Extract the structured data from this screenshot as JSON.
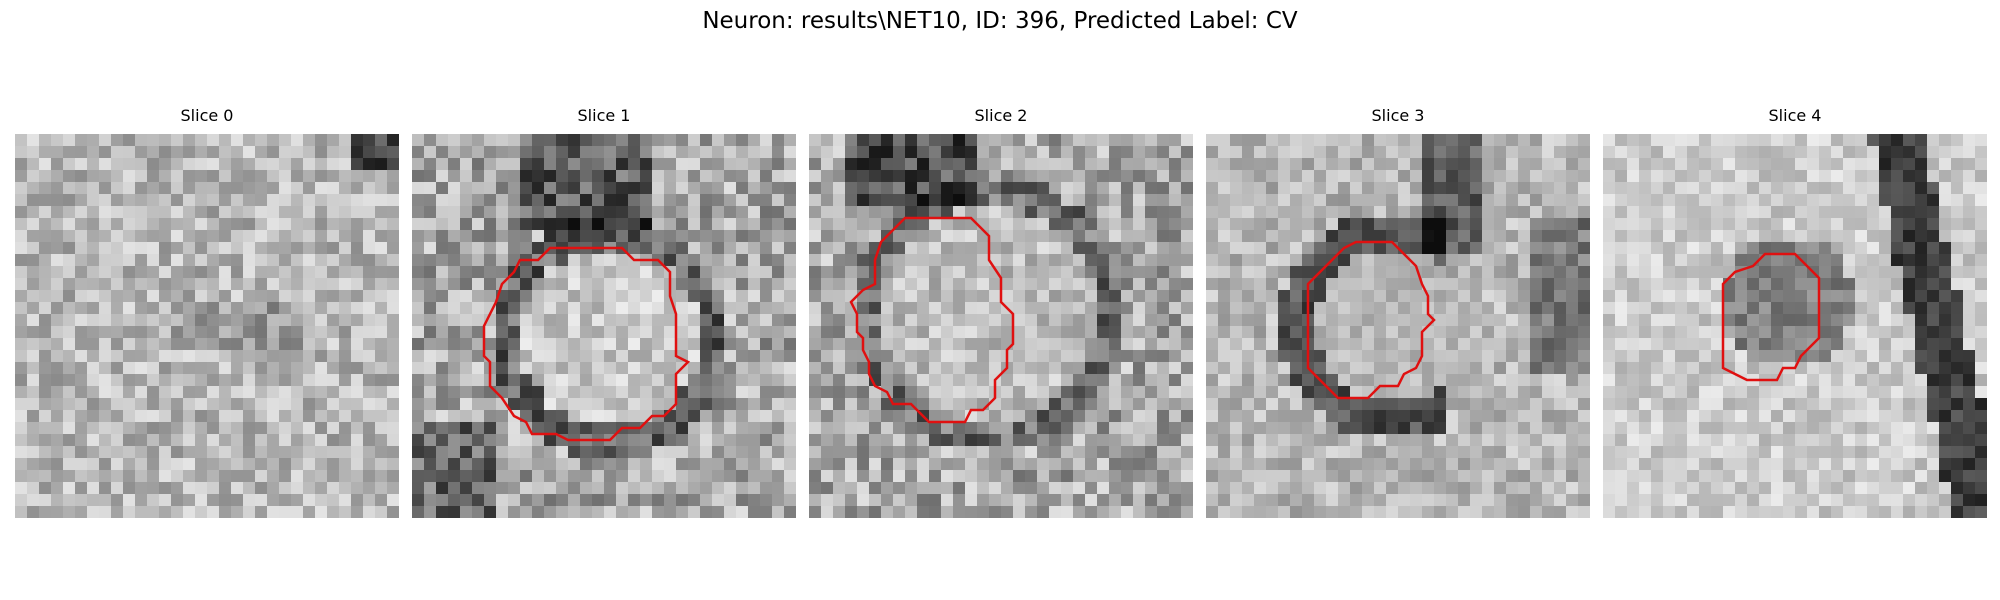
{
  "figure": {
    "title": "Neuron: results\\NET10, ID: 396, Predicted Label: CV"
  },
  "contour_color": "#e01010",
  "colormap": "gray",
  "panels": [
    {
      "title": "Slice 0",
      "has_contour": false
    },
    {
      "title": "Slice 1",
      "has_contour": true
    },
    {
      "title": "Slice 2",
      "has_contour": true
    },
    {
      "title": "Slice 3",
      "has_contour": true
    },
    {
      "title": "Slice 4",
      "has_contour": true
    }
  ]
}
